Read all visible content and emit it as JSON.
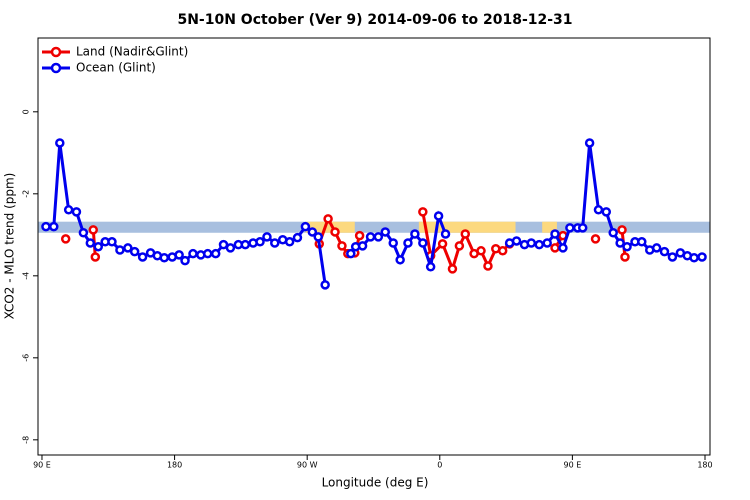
{
  "chart_data": {
    "type": "line",
    "title": "5N-10N October (Ver 9)   2014-09-06 to 2018-12-31",
    "x_label": "Longitude (deg E)",
    "y_label": "XCO2 - MLO trend (ppm)",
    "xlim": [
      87.3,
      543.4
    ],
    "ylim": [
      -8.37,
      1.8
    ],
    "xticks": [
      {
        "value": 90,
        "label": "90 E"
      },
      180,
      {
        "value": 270,
        "label": "90 W"
      },
      {
        "value": 360,
        "label": "0"
      },
      {
        "value": 450,
        "label": "90 E"
      },
      {
        "value": 540,
        "label": "180"
      }
    ],
    "yticks": [
      0,
      -2,
      -4,
      -6,
      -8
    ],
    "legend": "top-left",
    "band": {
      "ylim": [
        -2.68,
        -2.95
      ],
      "color": "#a8bfdf",
      "highlight_color": "#fcd97f",
      "highlights": [
        [
          268.8,
          302.3
        ],
        [
          345.8,
          411.4
        ],
        [
          429.5,
          439.5
        ]
      ]
    },
    "series": [
      {
        "name": "Land (Nadir&Glint)",
        "color": "#ee0000",
        "x": [
          106.1,
          110,
          124.8,
          126.2,
          200,
          278.2,
          284.2,
          288.9,
          293.6,
          297.6,
          302.3,
          305.6,
          330,
          348.5,
          353.8,
          361.9,
          368.6,
          373.3,
          377.3,
          383.3,
          388.0,
          392.7,
          398.0,
          402.7,
          407.4,
          420,
          438.2,
          443.6,
          460,
          465.7,
          470,
          483.7,
          485.7
        ],
        "values": [
          -3.1,
          null,
          -2.88,
          -3.54,
          null,
          -3.22,
          -2.61,
          -2.93,
          -3.27,
          -3.46,
          -3.44,
          -3.02,
          null,
          -2.44,
          -3.51,
          -3.22,
          -3.83,
          -3.27,
          -2.98,
          -3.46,
          -3.39,
          -3.76,
          -3.34,
          -3.39,
          -3.22,
          null,
          -3.32,
          -3.02,
          null,
          -3.1,
          null,
          -2.88,
          -3.54
        ]
      },
      {
        "name": "Ocean (Glint)",
        "color": "#0000ee",
        "x": [
          92.7,
          98.0,
          102.1,
          108.1,
          113.4,
          118.1,
          122.8,
          128.2,
          132.9,
          137.5,
          142.9,
          148.3,
          152.9,
          158.3,
          163.7,
          168.3,
          173.0,
          178.4,
          183.1,
          187.1,
          192.5,
          197.8,
          202.5,
          207.9,
          213.2,
          217.9,
          223.3,
          228.0,
          233.3,
          238.0,
          242.7,
          248.0,
          253.4,
          258.1,
          263.4,
          268.8,
          273.5,
          277.5,
          282.2,
          290,
          299.6,
          302.9,
          307.6,
          313.0,
          318.3,
          323.0,
          328.4,
          333.1,
          338.4,
          343.1,
          348.5,
          353.8,
          359.2,
          363.9,
          390,
          407.4,
          412.1,
          417.5,
          422.1,
          427.5,
          432.9,
          438.2,
          443.6,
          448.3,
          453.6,
          457.0,
          461.7,
          467.7,
          473.0,
          477.7,
          482.4,
          487.1,
          492.5,
          497.1,
          502.5,
          507.2,
          512.5,
          517.9,
          523.3,
          528.0,
          532.6,
          538.0
        ],
        "values": [
          -2.8,
          -2.8,
          -0.76,
          -2.39,
          -2.44,
          -2.95,
          -3.2,
          -3.29,
          -3.17,
          -3.17,
          -3.37,
          -3.32,
          -3.41,
          -3.54,
          -3.44,
          -3.51,
          -3.56,
          -3.54,
          -3.49,
          -3.63,
          -3.46,
          -3.49,
          -3.46,
          -3.46,
          -3.24,
          -3.32,
          -3.24,
          -3.24,
          -3.2,
          -3.17,
          -3.05,
          -3.2,
          -3.12,
          -3.17,
          -3.07,
          -2.8,
          -2.93,
          -3.05,
          -4.22,
          null,
          -3.46,
          -3.29,
          -3.27,
          -3.05,
          -3.05,
          -2.93,
          -3.2,
          -3.61,
          -3.2,
          -2.98,
          -3.2,
          -3.78,
          -2.54,
          -2.98,
          null,
          -3.2,
          -3.15,
          -3.24,
          -3.2,
          -3.24,
          -3.2,
          -2.98,
          -3.32,
          -2.83,
          -2.83,
          -2.83,
          -0.76,
          -2.39,
          -2.44,
          -2.95,
          -3.2,
          -3.29,
          -3.17,
          -3.17,
          -3.37,
          -3.32,
          -3.41,
          -3.54,
          -3.44,
          -3.51,
          -3.56,
          -3.54
        ]
      }
    ]
  }
}
